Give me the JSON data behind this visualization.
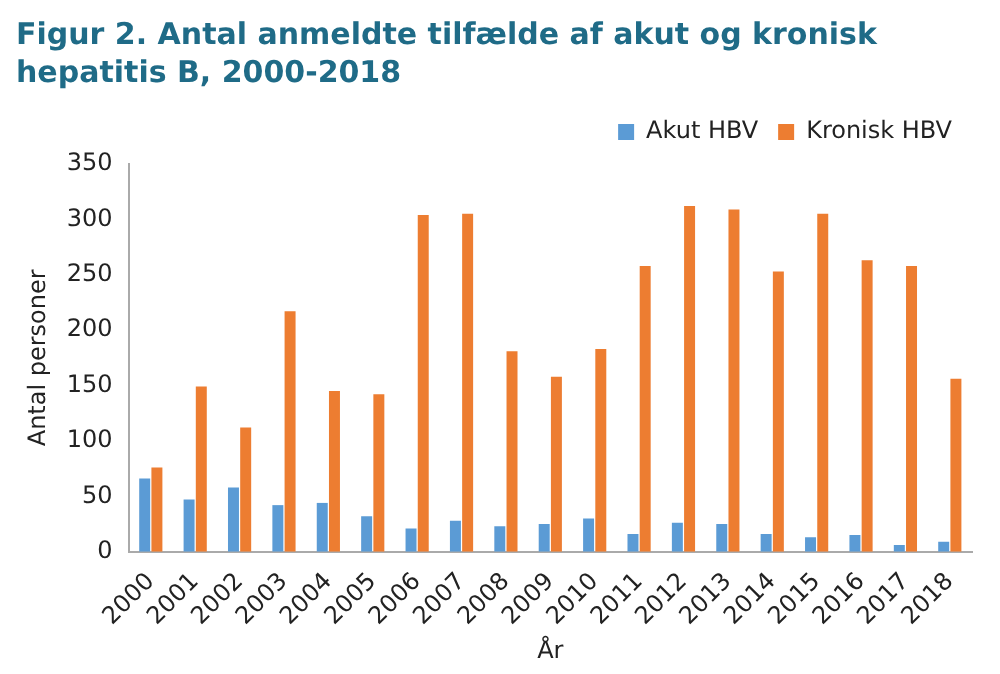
{
  "chart_data": {
    "type": "bar",
    "title": "Figur 2. Antal anmeldte tilfælde af akut og kronisk hepatitis B, 2000-2018",
    "xlabel": "År",
    "ylabel": "Antal personer",
    "categories": [
      "2000",
      "2001",
      "2002",
      "2003",
      "2004",
      "2005",
      "2006",
      "2007",
      "2008",
      "2009",
      "2010",
      "2011",
      "2012",
      "2013",
      "2014",
      "2015",
      "2016",
      "2017",
      "2018"
    ],
    "series": [
      {
        "name": "Akut HBV",
        "color": "#5b9bd5",
        "values": [
          66,
          47,
          58,
          42,
          44,
          32,
          21,
          28,
          23,
          25,
          30,
          16,
          26,
          25,
          16,
          13,
          15,
          6,
          9
        ]
      },
      {
        "name": "Kronisk HBV",
        "color": "#ed7d31",
        "values": [
          76,
          149,
          112,
          217,
          145,
          142,
          304,
          305,
          181,
          158,
          183,
          258,
          312,
          309,
          253,
          305,
          263,
          258,
          156
        ]
      }
    ],
    "ylim": [
      0,
      350
    ],
    "yticks": [
      0,
      50,
      100,
      150,
      200,
      250,
      300,
      350
    ],
    "grid": false,
    "legend": "top right"
  }
}
